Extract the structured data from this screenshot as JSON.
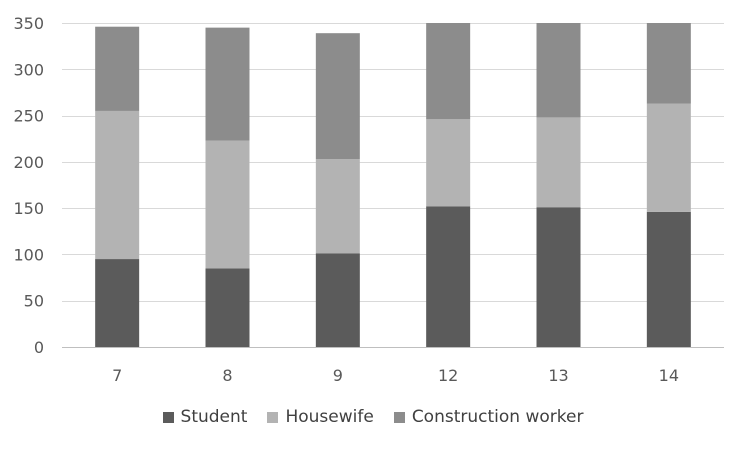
{
  "chart_data": {
    "type": "bar",
    "stacked": true,
    "title": "",
    "xlabel": "",
    "ylabel": "",
    "categories": [
      "7",
      "8",
      "9",
      "12",
      "13",
      "14"
    ],
    "ylim": [
      0,
      350
    ],
    "yticks": [
      0,
      50,
      100,
      150,
      200,
      250,
      300,
      350
    ],
    "grid": true,
    "legend_position": "bottom",
    "series": [
      {
        "name": "Student",
        "color": "#5b5b5b",
        "values": [
          95,
          85,
          101,
          152,
          151,
          146
        ]
      },
      {
        "name": "Housewife",
        "color": "#b3b3b3",
        "values": [
          160,
          138,
          102,
          94,
          97,
          117
        ]
      },
      {
        "name": "Construction worker",
        "color": "#8c8c8c",
        "values": [
          91,
          122,
          136,
          104,
          102,
          87
        ]
      }
    ]
  }
}
